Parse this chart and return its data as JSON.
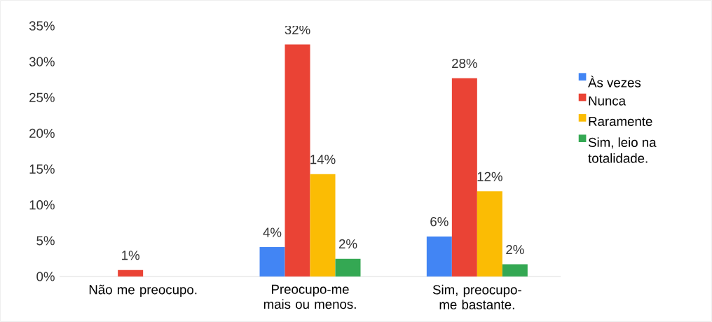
{
  "chart_data": {
    "type": "bar",
    "categories": [
      "Não me preocupo.",
      "Preocupo-me mais ou menos.",
      "Sim, preocupo-me bastante."
    ],
    "series": [
      {
        "name": "Às vezes",
        "color": "#4285f4",
        "values": [
          null,
          4.1,
          5.6
        ],
        "value_labels": [
          null,
          "4%",
          "6%"
        ]
      },
      {
        "name": "Nunca",
        "color": "#ea4335",
        "values": [
          0.9,
          32.4,
          27.7
        ],
        "value_labels": [
          "1%",
          "32%",
          "28%"
        ]
      },
      {
        "name": "Raramente",
        "color": "#fbbc04",
        "values": [
          null,
          14.3,
          11.9
        ],
        "value_labels": [
          null,
          "14%",
          "12%"
        ]
      },
      {
        "name": "Sim, leio na totalidade.",
        "color": "#34a853",
        "values": [
          null,
          2.5,
          1.7
        ],
        "value_labels": [
          null,
          "2%",
          "2%"
        ]
      }
    ],
    "ylim": [
      0,
      35
    ],
    "yticks": [
      {
        "value": 0,
        "label": "0%"
      },
      {
        "value": 5,
        "label": "5%"
      },
      {
        "value": 10,
        "label": "10%"
      },
      {
        "value": 15,
        "label": "15%"
      },
      {
        "value": 20,
        "label": "20%"
      },
      {
        "value": 25,
        "label": "25%"
      },
      {
        "value": 30,
        "label": "30%"
      },
      {
        "value": 35,
        "label": "35%"
      }
    ],
    "legend": "right"
  }
}
